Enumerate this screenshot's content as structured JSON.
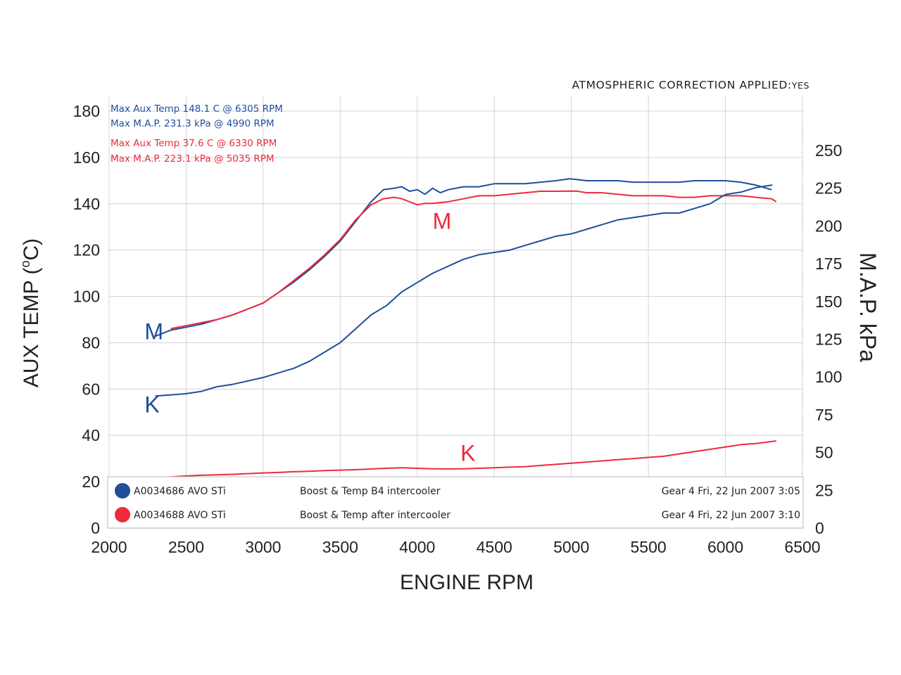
{
  "chart_data": {
    "type": "line",
    "note_top_right": "ATMOSPHERIC CORRECTION APPLIED:",
    "note_top_right_value": "YES",
    "xlabel": "ENGINE RPM",
    "ylabel_left": "AUX TEMP (ºC)",
    "ylabel_left_prefix": "AUX TEMP (",
    "ylabel_left_degree": "o",
    "ylabel_left_suffix": "C)",
    "ylabel_right": "M.A.P. kPa",
    "xlim": [
      2000,
      6500
    ],
    "ylim_left": [
      0,
      180
    ],
    "ylim_right": [
      0,
      275
    ],
    "x_ticks": [
      "2000",
      "2500",
      "3000",
      "3500",
      "4000",
      "4500",
      "5000",
      "5500",
      "6000",
      "6500"
    ],
    "y_left_ticks": [
      "0",
      "20",
      "40",
      "60",
      "80",
      "100",
      "120",
      "140",
      "160",
      "180"
    ],
    "y_right_ticks": [
      "0",
      "25",
      "50",
      "75",
      "100",
      "125",
      "150",
      "175",
      "200",
      "225",
      "250"
    ],
    "colors": {
      "run1": "#1f4e9c",
      "run2": "#ee2a3b"
    },
    "max_notes": [
      {
        "text": "Max Aux Temp 148.1 C @ 6305 RPM",
        "color": "#1f4e9c"
      },
      {
        "text": "Max M.A.P. 231.3 kPa  @ 4990 RPM",
        "color": "#1f4e9c"
      },
      {
        "text": "Max Aux Temp 37.6 C @ 6330 RPM",
        "color": "#ee2a3b"
      },
      {
        "text": "Max M.A.P. 223.1 kPa  @ 5035 RPM",
        "color": "#ee2a3b"
      }
    ],
    "legend": [
      {
        "run": "A0034686 AVO STi",
        "description": "Boost & Temp B4 intercooler",
        "info": "Gear 4 Fri, 22 Jun 2007 3:05",
        "color": "#1f4e9c"
      },
      {
        "run": "A0034688 AVO STi",
        "description": "Boost & Temp after intercooler",
        "info": "Gear 4 Fri, 22 Jun 2007 3:10",
        "color": "#ee2a3b"
      }
    ],
    "series": [
      {
        "name": "A0034686 AVO STi M.A.P.",
        "label": "M",
        "axis": "right",
        "color": "#1f4e9c",
        "label_pos": [
          2230,
          125
        ],
        "x": [
          2300,
          2400,
          2500,
          2600,
          2700,
          2800,
          2900,
          3000,
          3100,
          3200,
          3300,
          3400,
          3500,
          3600,
          3700,
          3780,
          3850,
          3900,
          3950,
          4000,
          4050,
          4100,
          4150,
          4200,
          4300,
          4400,
          4500,
          4600,
          4700,
          4800,
          4900,
          4990,
          5100,
          5200,
          5300,
          5400,
          5500,
          5600,
          5700,
          5800,
          5900,
          6000,
          6100,
          6200,
          6300
        ],
        "y": [
          127,
          131,
          133,
          135,
          138,
          141,
          145,
          149,
          156,
          163,
          171,
          180,
          190,
          203,
          216,
          224,
          225,
          226,
          223,
          224,
          221,
          225,
          222,
          224,
          226,
          226,
          228,
          228,
          228,
          229,
          230,
          231.3,
          230,
          230,
          230,
          229,
          229,
          229,
          229,
          230,
          230,
          230,
          229,
          227,
          224
        ]
      },
      {
        "name": "A0034688 AVO STi M.A.P.",
        "label": "M",
        "axis": "right",
        "color": "#ee2a3b",
        "label_pos": [
          4100,
          198
        ],
        "x": [
          2400,
          2500,
          2600,
          2700,
          2800,
          2900,
          3000,
          3100,
          3200,
          3300,
          3400,
          3500,
          3600,
          3700,
          3780,
          3850,
          3900,
          3950,
          4000,
          4050,
          4100,
          4200,
          4300,
          4400,
          4500,
          4600,
          4700,
          4800,
          4900,
          5035,
          5100,
          5200,
          5300,
          5400,
          5500,
          5600,
          5700,
          5800,
          5900,
          6000,
          6100,
          6200,
          6300,
          6330
        ],
        "y": [
          132,
          134,
          136,
          138,
          141,
          145,
          149,
          156,
          164,
          172,
          181,
          191,
          204,
          214,
          218,
          219,
          218,
          216,
          214,
          215,
          215,
          216,
          218,
          220,
          220,
          221,
          222,
          223,
          223,
          223.1,
          222,
          222,
          221,
          220,
          220,
          220,
          219,
          219,
          220,
          220,
          220,
          219,
          218,
          216
        ]
      },
      {
        "name": "A0034686 AVO STi Aux Temp",
        "label": "K",
        "axis": "left",
        "color": "#1f4e9c",
        "label_pos": [
          2230,
          50
        ],
        "x": [
          2300,
          2400,
          2500,
          2600,
          2700,
          2800,
          2900,
          3000,
          3100,
          3200,
          3300,
          3400,
          3500,
          3600,
          3700,
          3800,
          3900,
          4000,
          4100,
          4200,
          4300,
          4400,
          4500,
          4600,
          4700,
          4800,
          4900,
          5000,
          5100,
          5200,
          5300,
          5400,
          5500,
          5600,
          5700,
          5800,
          5900,
          6000,
          6100,
          6200,
          6305
        ],
        "y": [
          57,
          57.5,
          58,
          59,
          61,
          62,
          63.5,
          65,
          67,
          69,
          72,
          76,
          80,
          86,
          92,
          96,
          102,
          106,
          110,
          113,
          116,
          118,
          119,
          120,
          122,
          124,
          126,
          127,
          129,
          131,
          133,
          134,
          135,
          136,
          136,
          138,
          140,
          144,
          145,
          147,
          148.1
        ]
      },
      {
        "name": "A0034688 AVO STi Aux Temp",
        "label": "K",
        "axis": "left",
        "color": "#ee2a3b",
        "label_pos": [
          4280,
          29
        ],
        "x": [
          2380,
          2500,
          2600,
          2700,
          2800,
          2900,
          3000,
          3100,
          3200,
          3300,
          3400,
          3500,
          3600,
          3700,
          3800,
          3900,
          4000,
          4100,
          4200,
          4300,
          4400,
          4500,
          4600,
          4700,
          4800,
          4900,
          5000,
          5100,
          5200,
          5300,
          5400,
          5500,
          5600,
          5700,
          5800,
          5900,
          6000,
          6100,
          6200,
          6330
        ],
        "y": [
          22,
          22.5,
          22.8,
          23,
          23.2,
          23.5,
          23.8,
          24,
          24.3,
          24.5,
          24.8,
          25,
          25.2,
          25.5,
          25.8,
          26,
          25.8,
          25.6,
          25.5,
          25.6,
          25.8,
          26,
          26.3,
          26.5,
          27,
          27.5,
          28,
          28.5,
          29,
          29.5,
          30,
          30.5,
          31,
          32,
          33,
          34,
          35,
          36,
          36.5,
          37.6
        ]
      }
    ]
  }
}
